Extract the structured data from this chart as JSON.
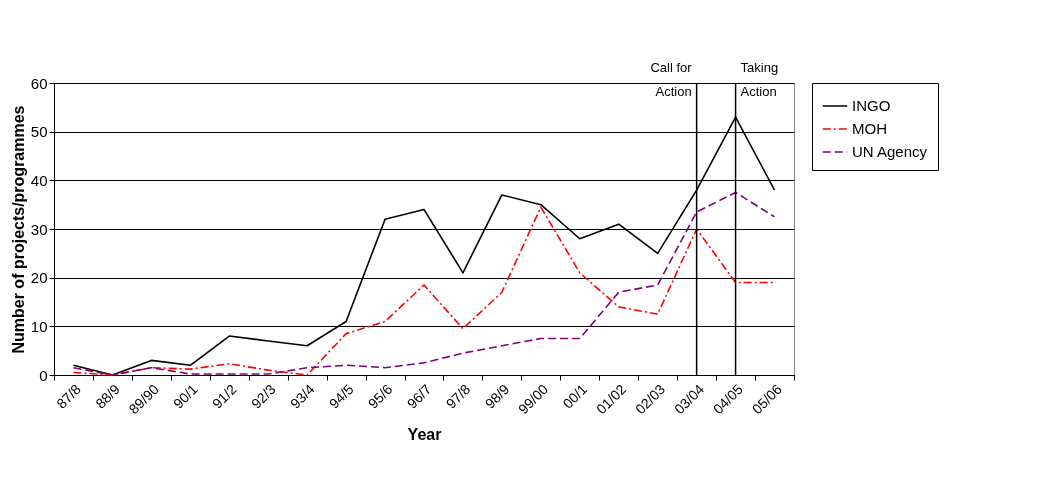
{
  "chart_data": {
    "type": "line",
    "xlabel": "Year",
    "ylabel": "Number of projects/programmes",
    "categories": [
      "87/8",
      "88/9",
      "89/90",
      "90/1",
      "91/2",
      "92/3",
      "93/4",
      "94/5",
      "95/6",
      "96/7",
      "97/8",
      "98/9",
      "99/00",
      "00/1",
      "01/02",
      "02/03",
      "03/04",
      "04/05",
      "05/06"
    ],
    "series": [
      {
        "name": "INGO",
        "color": "#000000",
        "line_style": "solid",
        "values": [
          2,
          0,
          3,
          2,
          8,
          7,
          6,
          11,
          32,
          34,
          21,
          37,
          35,
          28,
          31,
          25,
          38,
          53,
          38
        ]
      },
      {
        "name": "MOH",
        "color": "#ff0000",
        "line_style": "dashdot",
        "values": [
          0.5,
          0,
          1.5,
          1.2,
          2.3,
          1,
          0,
          8.5,
          11,
          18.5,
          9.5,
          17,
          34.5,
          21,
          14,
          12.5,
          30,
          19,
          19
        ]
      },
      {
        "name": "UN Agency",
        "color": "#800080",
        "line_style": "dashed",
        "values": [
          1.5,
          0,
          1.5,
          0.2,
          0.2,
          0.2,
          1.5,
          2,
          1.5,
          2.5,
          4.5,
          6,
          7.5,
          7.5,
          17,
          18.5,
          33.5,
          37.5,
          32.5
        ]
      }
    ],
    "ylim": [
      0,
      60
    ],
    "yticks": [
      0,
      10,
      20,
      30,
      40,
      50,
      60
    ],
    "grid": "y",
    "legend": "right",
    "marker": "none",
    "ref_lines": [
      {
        "axis": "x",
        "value": "03/04",
        "label": "Call for\nAction",
        "color": "#000000"
      },
      {
        "axis": "x",
        "value": "04/05",
        "label": "Taking\nAction",
        "color": "#000000"
      }
    ]
  }
}
